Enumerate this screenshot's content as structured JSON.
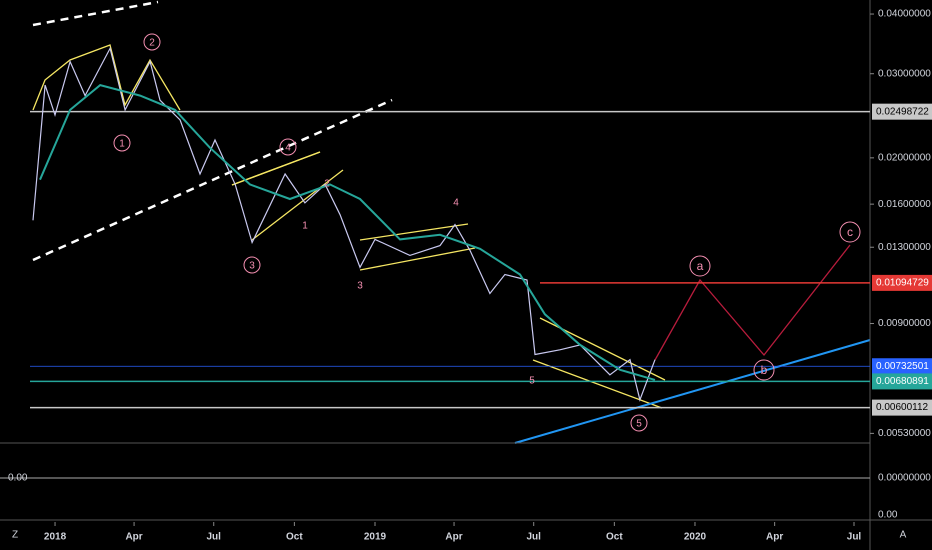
{
  "chart_data": {
    "type": "line",
    "log_scale": true,
    "background": "#000000",
    "x": [
      2017.931,
      2017.969,
      2018,
      2018.047,
      2018.094,
      2018.172,
      2018.219,
      2018.297,
      2018.328,
      2018.391,
      2018.453,
      2018.5,
      2018.563,
      2018.616,
      2018.719,
      2018.781,
      2018.844,
      2018.891,
      2018.953,
      2019,
      2019.109,
      2019.203,
      2019.25,
      2019.297,
      2019.359,
      2019.406,
      2019.475,
      2019.5,
      2019.578,
      2019.641,
      2019.734,
      2019.797,
      2019.828,
      2019.875
    ],
    "series": [
      {
        "color": "#c9c9f0",
        "values": [
          0.0148,
          0.0284,
          0.0246,
          0.0318,
          0.027,
          0.0339,
          0.0252,
          0.0318,
          0.0264,
          0.024,
          0.0185,
          0.0218,
          0.0176,
          0.0133,
          0.0185,
          0.0161,
          0.0176,
          0.0152,
          0.0118,
          0.0135,
          0.0125,
          0.0131,
          0.0145,
          0.0128,
          0.0104,
          0.0114,
          0.0111,
          0.00775,
          0.00793,
          0.00812,
          0.00703,
          0.00756,
          0.00623,
          0.00756
        ]
      },
      {
        "color": "#26a69a",
        "x": [
          2017.953,
          2018.047,
          2018.141,
          2018.266,
          2018.375,
          2018.484,
          2018.609,
          2018.734,
          2018.859,
          2018.953,
          2019.078,
          2019.203,
          2019.328,
          2019.453,
          2019.531,
          2019.641,
          2019.766,
          2019.875
        ],
        "values": [
          0.018,
          0.0252,
          0.0284,
          0.027,
          0.0252,
          0.021,
          0.0176,
          0.0164,
          0.0176,
          0.0164,
          0.0135,
          0.0138,
          0.0129,
          0.0114,
          0.00941,
          0.00812,
          0.0072,
          0.00686
        ]
      }
    ],
    "xlim": [
      2017.828,
      2020.547
    ],
    "xticks": [
      {
        "value": 2018,
        "label": "2018"
      },
      {
        "value": 2018.247,
        "label": "Apr"
      },
      {
        "value": 2018.496,
        "label": "Jul"
      },
      {
        "value": 2018.748,
        "label": "Oct"
      },
      {
        "value": 2019,
        "label": "2019"
      },
      {
        "value": 2019.247,
        "label": "Apr"
      },
      {
        "value": 2019.496,
        "label": "Jul"
      },
      {
        "value": 2019.748,
        "label": "Oct"
      },
      {
        "value": 2020,
        "label": "2020"
      },
      {
        "value": 2020.249,
        "label": "Apr"
      },
      {
        "value": 2020.497,
        "label": "Jul"
      }
    ],
    "ylim": [
      0.00506,
      0.0428
    ],
    "yticks": [
      {
        "value": 0.04,
        "label": "0.04000000"
      },
      {
        "value": 0.03,
        "label": "0.03000000"
      },
      {
        "value": 0.02,
        "label": "0.02000000"
      },
      {
        "value": 0.016,
        "label": "0.01600000"
      },
      {
        "value": 0.013,
        "label": "0.01300000"
      },
      {
        "value": 0.009,
        "label": "0.00900000"
      },
      {
        "value": 0.0053,
        "label": "0.00530000"
      }
    ],
    "price_levels": [
      {
        "value": 0.02498722,
        "label": "0.02498722",
        "color": "#c8c8c8"
      },
      {
        "value": 0.01094729,
        "label": "0.01094729",
        "color": "#e53935"
      },
      {
        "value": 0.00732501,
        "label": "0.00732501",
        "color": "#2962ff"
      },
      {
        "value": 0.00680891,
        "label": "0.00680891",
        "color": "#26a69a"
      },
      {
        "value": 0.00600112,
        "label": "0.00600112",
        "color": "#c8c8c8"
      }
    ],
    "annotations": [
      "1",
      "2",
      "3",
      "4",
      "5",
      "a",
      "b",
      "c",
      "1",
      "2",
      "3",
      "4",
      "5"
    ],
    "indicator_labels": [
      "0.00",
      "0.00000000",
      "0.00"
    ],
    "corner_labels": [
      "Z",
      "A"
    ]
  }
}
